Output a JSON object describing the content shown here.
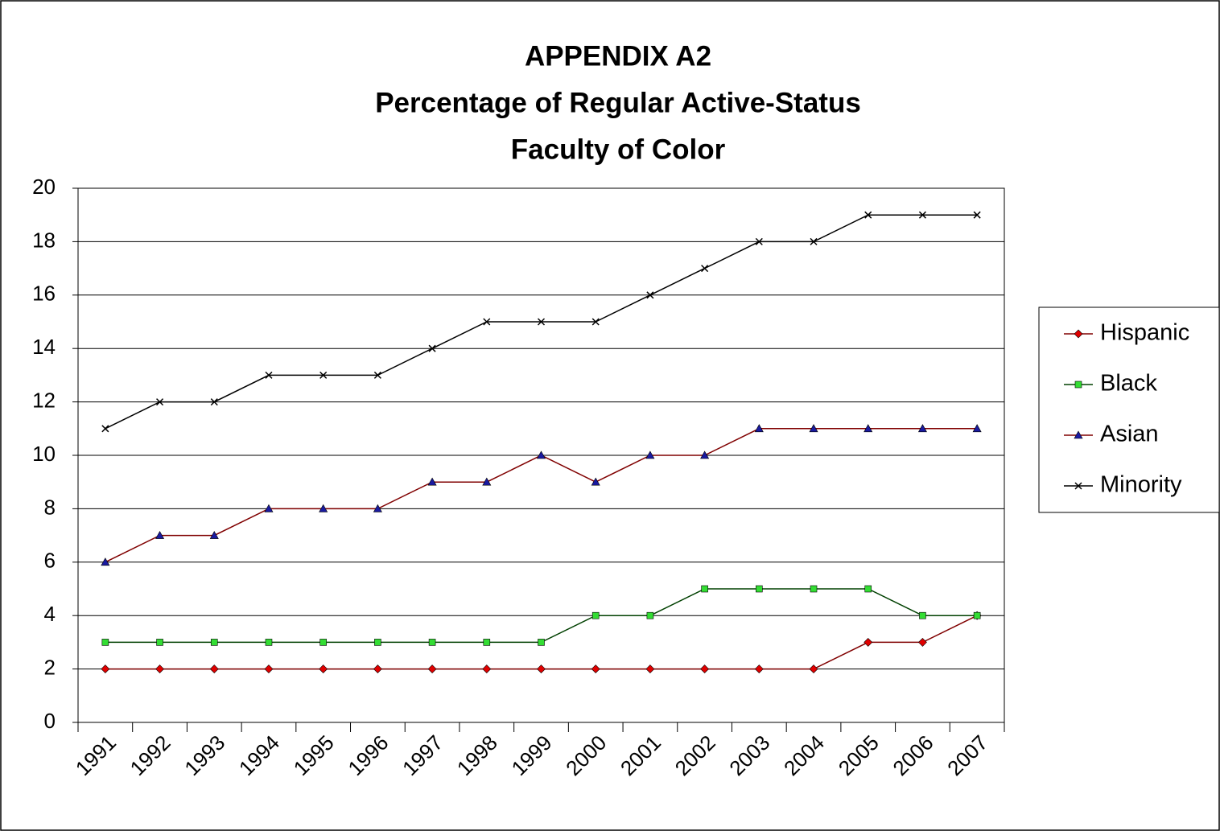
{
  "chart_data": {
    "type": "line",
    "title": [
      "APPENDIX A2",
      "Percentage of Regular Active-Status",
      "Faculty of Color"
    ],
    "categories": [
      "1991",
      "1992",
      "1993",
      "1994",
      "1995",
      "1996",
      "1997",
      "1998",
      "1999",
      "2000",
      "2001",
      "2002",
      "2003",
      "2004",
      "2005",
      "2006",
      "2007"
    ],
    "series": [
      {
        "name": "Hispanic",
        "color": "#800000",
        "marker": "diamond",
        "marker_color": "#e00000",
        "values": [
          2,
          2,
          2,
          2,
          2,
          2,
          2,
          2,
          2,
          2,
          2,
          2,
          2,
          2,
          3,
          3,
          4
        ]
      },
      {
        "name": "Black",
        "color": "#004000",
        "marker": "square",
        "marker_color": "#33dd33",
        "values": [
          3,
          3,
          3,
          3,
          3,
          3,
          3,
          3,
          3,
          4,
          4,
          5,
          5,
          5,
          5,
          4,
          4
        ]
      },
      {
        "name": "Asian",
        "color": "#800000",
        "marker": "triangle",
        "marker_color": "#1a1aa0",
        "values": [
          6,
          7,
          7,
          8,
          8,
          8,
          9,
          9,
          10,
          9,
          10,
          10,
          11,
          11,
          11,
          11,
          11
        ]
      },
      {
        "name": "Minority",
        "color": "#000000",
        "marker": "x",
        "marker_color": "#000000",
        "values": [
          11,
          12,
          12,
          13,
          13,
          13,
          14,
          15,
          15,
          15,
          16,
          17,
          18,
          18,
          19,
          19,
          19
        ]
      }
    ],
    "ylim": [
      0,
      20
    ],
    "yticks": [
      0,
      2,
      4,
      6,
      8,
      10,
      12,
      14,
      16,
      18,
      20
    ],
    "grid": true,
    "legend": "right"
  }
}
